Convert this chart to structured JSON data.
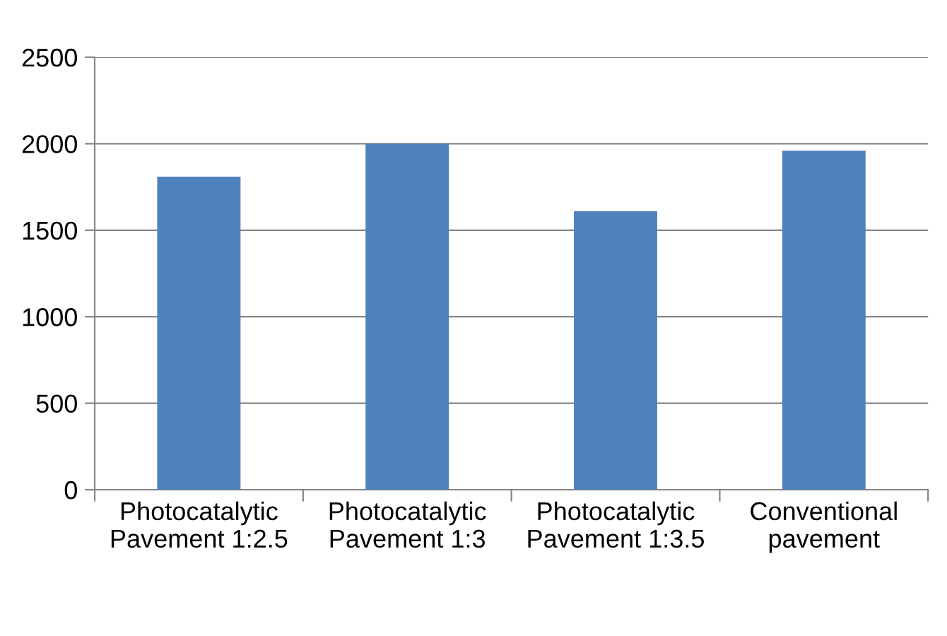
{
  "chart_data": {
    "type": "bar",
    "categories": [
      "Photocatalytic\nPavement 1:2.5",
      "Photocatalytic\nPavement 1:3",
      "Photocatalytic\nPavement 1:3.5",
      "Conventional\npavement"
    ],
    "values": [
      1810,
      2000,
      1610,
      1960
    ],
    "color": "#4f81bd",
    "ylim": [
      0,
      2500
    ],
    "yticks": [
      0,
      500,
      1000,
      1500,
      2000,
      2500
    ],
    "grid": "y",
    "legend": false
  }
}
